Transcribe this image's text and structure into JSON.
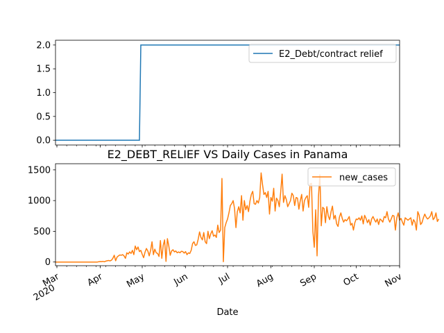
{
  "chart_data": [
    {
      "type": "line",
      "title": "",
      "xlabel": "",
      "ylabel": "",
      "x_range": [
        "2020-02-29",
        "2020-11-01"
      ],
      "ylim": [
        -0.1,
        2.1
      ],
      "y_ticks": [
        "0.0",
        "0.5",
        "1.0",
        "1.5",
        "2.0"
      ],
      "legend_position": "top-right",
      "grid": false,
      "series": [
        {
          "name": "E2_Debt/contract relief",
          "color": "#1f77b4",
          "points": [
            [
              "2020-02-29",
              0
            ],
            [
              "2020-04-29",
              0
            ],
            [
              "2020-04-30",
              2
            ],
            [
              "2020-11-01",
              2
            ]
          ]
        }
      ]
    },
    {
      "type": "line",
      "title": "E2_DEBT_RELIEF VS Daily Cases in Panama",
      "xlabel": "Date",
      "ylabel": "",
      "x_range": [
        "2020-02-29",
        "2020-11-01"
      ],
      "ylim": [
        -60,
        1600
      ],
      "y_ticks": [
        "0",
        "500",
        "1000",
        "1500"
      ],
      "x_ticks": [
        {
          "date": "2020-03-01",
          "label": "Mar",
          "sublabel": "2020"
        },
        {
          "date": "2020-04-01",
          "label": "Apr"
        },
        {
          "date": "2020-05-01",
          "label": "May"
        },
        {
          "date": "2020-06-01",
          "label": "Jun"
        },
        {
          "date": "2020-07-01",
          "label": "Jul"
        },
        {
          "date": "2020-08-01",
          "label": "Aug"
        },
        {
          "date": "2020-09-01",
          "label": "Sep"
        },
        {
          "date": "2020-10-01",
          "label": "Oct"
        },
        {
          "date": "2020-11-01",
          "label": "Nov"
        }
      ],
      "legend_position": "top-right",
      "grid": false,
      "series": [
        {
          "name": "new_cases",
          "color": "#ff7f0e",
          "start_date": "2020-02-29",
          "values": [
            0,
            0,
            0,
            0,
            0,
            0,
            0,
            0,
            0,
            0,
            0,
            0,
            0,
            0,
            0,
            0,
            0,
            0,
            0,
            0,
            0,
            0,
            0,
            0,
            0,
            0,
            0,
            0,
            0,
            0,
            0,
            5,
            8,
            6,
            10,
            4,
            15,
            20,
            25,
            18,
            30,
            60,
            110,
            20,
            80,
            100,
            115,
            110,
            120,
            100,
            60,
            150,
            130,
            165,
            140,
            190,
            120,
            260,
            200,
            245,
            170,
            190,
            125,
            70,
            160,
            220,
            180,
            100,
            190,
            330,
            120,
            210,
            150,
            140,
            90,
            350,
            60,
            270,
            360,
            10,
            380,
            260,
            110,
            180,
            200,
            165,
            180,
            150,
            165,
            150,
            175,
            170,
            145,
            170,
            120,
            150,
            140,
            190,
            300,
            330,
            270,
            280,
            370,
            490,
            400,
            360,
            480,
            330,
            300,
            500,
            380,
            460,
            510,
            420,
            440,
            400,
            600,
            480,
            520,
            1360,
            5,
            560,
            640,
            700,
            800,
            920,
            950,
            1000,
            870,
            560,
            820,
            900,
            800,
            1080,
            680,
            1000,
            850,
            920,
            820,
            990,
            1100,
            1150,
            950,
            940,
            1000,
            960,
            1050,
            1450,
            1260,
            1100,
            1130,
            1050,
            1150,
            780,
            1050,
            990,
            1200,
            830,
            1040,
            1000,
            900,
            1140,
            1430,
            970,
            1080,
            1020,
            900,
            950,
            1000,
            1120,
            1080,
            920,
            1050,
            1040,
            860,
            1000,
            1100,
            830,
            1000,
            1050,
            1080,
            890,
            1270,
            1280,
            500,
            240,
            850,
            100,
            1060,
            1420,
            590,
            890,
            870,
            640,
            900,
            750,
            690,
            820,
            910,
            700,
            760,
            620,
            580,
            730,
            800,
            710,
            650,
            690,
            670,
            700,
            740,
            600,
            630,
            520,
            640,
            700,
            690,
            720,
            680,
            750,
            620,
            760,
            710,
            640,
            690,
            600,
            700,
            740,
            690,
            650,
            700,
            610,
            700,
            680,
            650,
            740,
            720,
            820,
            700,
            650,
            700,
            760,
            750,
            520,
            720,
            800,
            680,
            710,
            650,
            600,
            720,
            700,
            680,
            700,
            720,
            600,
            690,
            650,
            520,
            820,
            760,
            610,
            640,
            720,
            780,
            730,
            700,
            720,
            750,
            820,
            690,
            720,
            800,
            660,
            700
          ]
        }
      ]
    }
  ]
}
